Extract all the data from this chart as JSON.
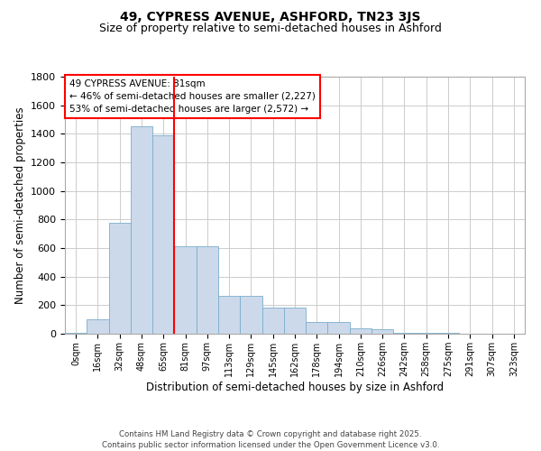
{
  "title_line1": "49, CYPRESS AVENUE, ASHFORD, TN23 3JS",
  "title_line2": "Size of property relative to semi-detached houses in Ashford",
  "xlabel": "Distribution of semi-detached houses by size in Ashford",
  "ylabel": "Number of semi-detached properties",
  "bin_labels": [
    "0sqm",
    "16sqm",
    "32sqm",
    "48sqm",
    "65sqm",
    "81sqm",
    "97sqm",
    "113sqm",
    "129sqm",
    "145sqm",
    "162sqm",
    "178sqm",
    "194sqm",
    "210sqm",
    "226sqm",
    "242sqm",
    "258sqm",
    "275sqm",
    "291sqm",
    "307sqm",
    "323sqm"
  ],
  "bar_values": [
    5,
    100,
    780,
    1450,
    1390,
    615,
    615,
    265,
    265,
    185,
    185,
    80,
    80,
    40,
    30,
    5,
    5,
    5,
    0,
    0,
    0
  ],
  "bar_color": "#ccd9eb",
  "bar_edge_color": "#7aadcc",
  "vline_color": "red",
  "vline_x": 5,
  "annotation_text": "49 CYPRESS AVENUE: 81sqm\n← 46% of semi-detached houses are smaller (2,227)\n53% of semi-detached houses are larger (2,572) →",
  "annotation_box_color": "white",
  "annotation_box_edge_color": "red",
  "ylim": [
    0,
    1800
  ],
  "yticks": [
    0,
    200,
    400,
    600,
    800,
    1000,
    1200,
    1400,
    1600,
    1800
  ],
  "grid_color": "#cccccc",
  "footer_text": "Contains HM Land Registry data © Crown copyright and database right 2025.\nContains public sector information licensed under the Open Government Licence v3.0."
}
